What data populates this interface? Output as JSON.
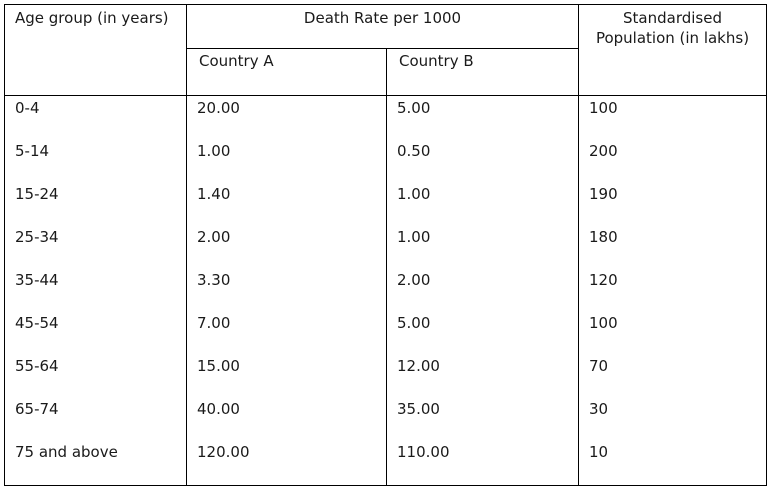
{
  "header": {
    "age_group": "Age group (in years)",
    "death_rate": "Death Rate per 1000",
    "country_a": "Country A",
    "country_b": "Country B",
    "standardised_population": "Standardised Population (in lakhs)"
  },
  "rows": [
    {
      "age": "0-4",
      "country_a": "20.00",
      "country_b": "5.00",
      "population": "100"
    },
    {
      "age": "5-14",
      "country_a": "1.00",
      "country_b": "0.50",
      "population": "200"
    },
    {
      "age": "15-24",
      "country_a": "1.40",
      "country_b": "1.00",
      "population": "190"
    },
    {
      "age": "25-34",
      "country_a": "2.00",
      "country_b": "1.00",
      "population": "180"
    },
    {
      "age": "35-44",
      "country_a": "3.30",
      "country_b": "2.00",
      "population": "120"
    },
    {
      "age": "45-54",
      "country_a": "7.00",
      "country_b": "5.00",
      "population": "100"
    },
    {
      "age": "55-64",
      "country_a": "15.00",
      "country_b": "12.00",
      "population": "70"
    },
    {
      "age": "65-74",
      "country_a": "40.00",
      "country_b": "35.00",
      "population": "30"
    },
    {
      "age": "75 and above",
      "country_a": "120.00",
      "country_b": "110.00",
      "population": "10"
    }
  ]
}
